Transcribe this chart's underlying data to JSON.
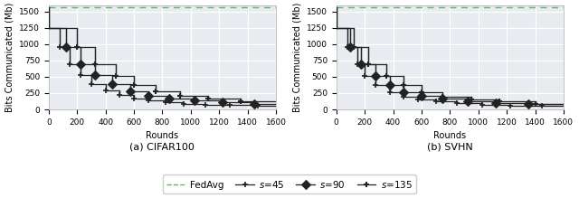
{
  "fedavg_y": 1570,
  "fedavg_color": "#5cb85c",
  "line_color": "#222222",
  "bg_color": "#e8ecf0",
  "grid_color": "#ffffff",
  "xlabel": "Rounds",
  "ylabel": "Bits Communicated (Mb)",
  "xlim": [
    0,
    1600
  ],
  "ylim": [
    0,
    1600
  ],
  "yticks": [
    0,
    250,
    500,
    750,
    1000,
    1250,
    1500
  ],
  "xticks": [
    0,
    200,
    400,
    600,
    800,
    1000,
    1200,
    1400,
    1600
  ],
  "subplot_labels": [
    "(a) CIFAR100",
    "(b) SVHN"
  ],
  "cifar100": {
    "s45_steps_x": [
      0,
      75,
      150,
      225,
      300,
      400,
      500,
      600,
      700,
      825,
      950,
      1100,
      1275,
      1475,
      1600
    ],
    "s45_steps_y": [
      1250,
      950,
      700,
      530,
      390,
      290,
      215,
      170,
      135,
      110,
      90,
      75,
      65,
      57,
      57
    ],
    "s90_steps_x": [
      0,
      125,
      225,
      325,
      450,
      575,
      700,
      850,
      1025,
      1225,
      1450,
      1600
    ],
    "s90_steps_y": [
      1250,
      950,
      700,
      530,
      390,
      280,
      210,
      168,
      135,
      110,
      90,
      90
    ],
    "s135_steps_x": [
      0,
      200,
      325,
      475,
      600,
      750,
      925,
      1125,
      1350,
      1600
    ],
    "s135_steps_y": [
      1250,
      950,
      700,
      510,
      375,
      275,
      208,
      165,
      130,
      130
    ],
    "s45_markers_x": [
      75,
      150,
      225,
      300,
      400,
      500,
      600,
      700,
      825,
      950,
      1100,
      1275,
      1475
    ],
    "s45_markers_y": [
      950,
      700,
      530,
      390,
      290,
      215,
      170,
      135,
      110,
      90,
      75,
      65,
      57
    ],
    "s90_markers_x": [
      125,
      225,
      325,
      450,
      575,
      700,
      850,
      1025,
      1225,
      1450
    ],
    "s90_markers_y": [
      950,
      700,
      530,
      390,
      280,
      210,
      168,
      135,
      110,
      90
    ],
    "s135_markers_x": [
      200,
      325,
      475,
      600,
      750,
      925,
      1125,
      1350
    ],
    "s135_markers_y": [
      950,
      700,
      510,
      375,
      275,
      208,
      165,
      130
    ]
  },
  "svhn": {
    "s45_steps_x": [
      0,
      75,
      150,
      200,
      275,
      375,
      475,
      575,
      700,
      850,
      1025,
      1225,
      1450,
      1600
    ],
    "s45_steps_y": [
      1250,
      950,
      700,
      510,
      375,
      270,
      200,
      155,
      120,
      95,
      75,
      62,
      52,
      52
    ],
    "s90_steps_x": [
      0,
      100,
      175,
      275,
      375,
      475,
      600,
      750,
      925,
      1125,
      1350,
      1600
    ],
    "s90_steps_y": [
      1250,
      950,
      700,
      510,
      375,
      270,
      205,
      160,
      125,
      100,
      80,
      80
    ],
    "s135_steps_x": [
      0,
      125,
      225,
      350,
      475,
      600,
      750,
      950,
      1150,
      1400,
      1600
    ],
    "s135_steps_y": [
      1250,
      950,
      700,
      510,
      375,
      270,
      200,
      155,
      118,
      90,
      90
    ],
    "s45_markers_x": [
      75,
      150,
      200,
      275,
      375,
      475,
      575,
      700,
      850,
      1025,
      1225,
      1450
    ],
    "s45_markers_y": [
      950,
      700,
      510,
      375,
      270,
      200,
      155,
      120,
      95,
      75,
      62,
      52
    ],
    "s90_markers_x": [
      100,
      175,
      275,
      375,
      475,
      600,
      750,
      925,
      1125,
      1350
    ],
    "s90_markers_y": [
      950,
      700,
      510,
      375,
      270,
      205,
      160,
      125,
      100,
      80
    ],
    "s135_markers_x": [
      125,
      225,
      350,
      475,
      600,
      750,
      950,
      1150,
      1400
    ],
    "s135_markers_y": [
      950,
      700,
      510,
      375,
      270,
      200,
      155,
      118,
      90
    ]
  }
}
